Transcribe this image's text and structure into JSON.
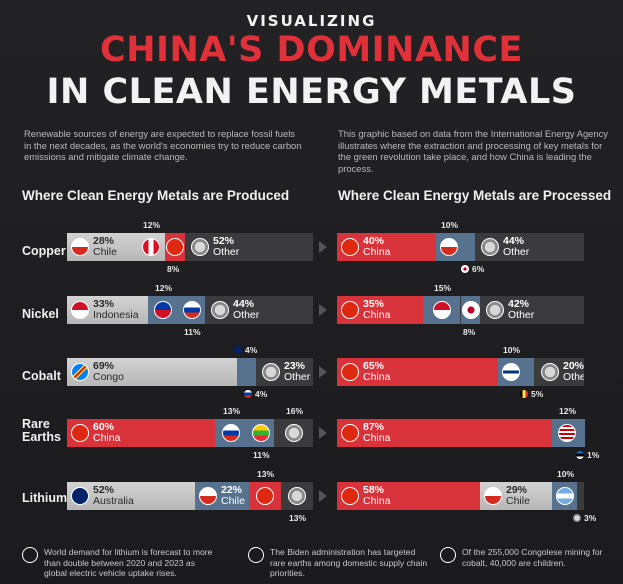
{
  "header": {
    "kicker": "VISUALIZING",
    "title_red": "CHINA'S DOMINANCE",
    "title_white": "IN CLEAN ENERGY METALS"
  },
  "intro_left": "Renewable sources of energy are expected to replace fossil fuels in the next decades, as the world's economies try to reduce carbon emissions and mitigate climate change.",
  "intro_right": "This graphic based on data from the International Energy Agency illustrates where the extraction and processing of key metals for the green revolution take place, and how China is leading the process.",
  "section_left": "Where Clean Energy Metals are Produced",
  "section_right": "Where Clean Energy Metals are Processed",
  "notes": [
    {
      "text": "World demand for lithium is forecast to more than double between 2020 and 2023 as global electric vehicle uptake rises.",
      "icon": "australia-flag-icon"
    },
    {
      "text": "The Biden administration has targeted rare earths among domestic supply chain priorities.",
      "icon": "us-flag-icon"
    },
    {
      "text": "Of the 255,000 Congolese mining for cobalt, 40,000 are children.",
      "icon": "congo-flag-icon"
    }
  ],
  "colors": {
    "china": "#d8323b",
    "label_gray": "#c4c4c4",
    "blue": "#56728f",
    "other": "#3b3b3d",
    "title_red": "#e0313a"
  },
  "chart_data": [
    {
      "type": "bar",
      "title": "Where Clean Energy Metals are Produced",
      "categories": [
        "Copper",
        "Nickel",
        "Cobalt",
        "Rare Earths",
        "Lithium"
      ],
      "rows": [
        {
          "metal": "Copper",
          "segments": [
            {
              "country": "Chile",
              "pct": "28%",
              "value": 28,
              "flag": "chile",
              "style": "gray",
              "inside": true
            },
            {
              "country": "Peru",
              "pct": "12%",
              "value": 12,
              "flag": "peru",
              "style": "gray",
              "inside": false,
              "callout": "above"
            },
            {
              "country": "China",
              "pct": "8%",
              "value": 8,
              "flag": "china",
              "style": "red",
              "inside": false,
              "callout": "below"
            },
            {
              "country": "Other",
              "pct": "52%",
              "value": 52,
              "flag": "globe",
              "style": "dark",
              "inside": true
            }
          ]
        },
        {
          "metal": "Nickel",
          "segments": [
            {
              "country": "Indonesia",
              "pct": "33%",
              "value": 33,
              "flag": "indonesia",
              "style": "gray",
              "inside": true
            },
            {
              "country": "Philippines",
              "pct": "12%",
              "value": 12,
              "flag": "philippines",
              "style": "blue",
              "inside": false,
              "callout": "above"
            },
            {
              "country": "Russia",
              "pct": "11%",
              "value": 11,
              "flag": "russia",
              "style": "blue",
              "inside": false,
              "callout": "below"
            },
            {
              "country": "Other",
              "pct": "44%",
              "value": 44,
              "flag": "globe",
              "style": "dark",
              "inside": true
            }
          ]
        },
        {
          "metal": "Cobalt",
          "segments": [
            {
              "country": "Congo",
              "pct": "69%",
              "value": 69,
              "flag": "congo",
              "style": "gray",
              "inside": true
            },
            {
              "country": "Australia",
              "pct": "4%",
              "value": 4,
              "flag": "australia",
              "style": "blue",
              "inside": false,
              "callout": "above"
            },
            {
              "country": "Russia",
              "pct": "4%",
              "value": 4,
              "flag": "russia",
              "style": "blue",
              "inside": false,
              "callout": "below"
            },
            {
              "country": "Other",
              "pct": "23%",
              "value": 23,
              "flag": "globe",
              "style": "dark",
              "inside": true
            }
          ]
        },
        {
          "metal": "Rare Earths",
          "segments": [
            {
              "country": "China",
              "pct": "60%",
              "value": 60,
              "flag": "china",
              "style": "red",
              "inside": true
            },
            {
              "country": "US",
              "pct": "13%",
              "value": 13,
              "flag": "russia",
              "style": "blue",
              "inside": false,
              "callout": "above"
            },
            {
              "country": "Myanmar",
              "pct": "11%",
              "value": 11,
              "flag": "myanmar",
              "style": "blue",
              "inside": false,
              "callout": "below"
            },
            {
              "country": "Other",
              "pct": "16%",
              "value": 16,
              "flag": "globe",
              "style": "dark",
              "inside": false,
              "callout": "above"
            }
          ]
        },
        {
          "metal": "Lithium",
          "segments": [
            {
              "country": "Australia",
              "pct": "52%",
              "value": 52,
              "flag": "australia",
              "style": "gray",
              "inside": true
            },
            {
              "country": "Chile",
              "pct": "22%",
              "value": 22,
              "flag": "chile",
              "style": "blue",
              "inside": true
            },
            {
              "country": "China",
              "pct": "13%",
              "value": 13,
              "flag": "china",
              "style": "red",
              "inside": false,
              "callout": "above"
            },
            {
              "country": "Other",
              "pct": "13%",
              "value": 13,
              "flag": "globe",
              "style": "dark",
              "inside": false,
              "callout": "below"
            }
          ]
        }
      ]
    },
    {
      "type": "bar",
      "title": "Where Clean Energy Metals are Processed",
      "categories": [
        "Copper",
        "Nickel",
        "Cobalt",
        "Rare Earths",
        "Lithium"
      ],
      "rows": [
        {
          "metal": "Copper",
          "segments": [
            {
              "country": "China",
              "pct": "40%",
              "value": 40,
              "flag": "china",
              "style": "red",
              "inside": true
            },
            {
              "country": "Chile",
              "pct": "10%",
              "value": 10,
              "flag": "chile",
              "style": "blue",
              "inside": false,
              "callout": "above"
            },
            {
              "country": "Japan",
              "pct": "6%",
              "value": 6,
              "flag": "japan",
              "style": "blue",
              "inside": false,
              "callout": "below"
            },
            {
              "country": "Other",
              "pct": "44%",
              "value": 44,
              "flag": "globe",
              "style": "dark",
              "inside": true
            }
          ]
        },
        {
          "metal": "Nickel",
          "segments": [
            {
              "country": "China",
              "pct": "35%",
              "value": 35,
              "flag": "china",
              "style": "red",
              "inside": true
            },
            {
              "country": "Indonesia",
              "pct": "15%",
              "value": 15,
              "flag": "indonesia",
              "style": "blue",
              "inside": false,
              "callout": "above"
            },
            {
              "country": "Japan",
              "pct": "8%",
              "value": 8,
              "flag": "japan",
              "style": "blue",
              "inside": false,
              "callout": "below"
            },
            {
              "country": "Other",
              "pct": "42%",
              "value": 42,
              "flag": "globe",
              "style": "dark",
              "inside": true
            }
          ]
        },
        {
          "metal": "Cobalt",
          "segments": [
            {
              "country": "China",
              "pct": "65%",
              "value": 65,
              "flag": "china",
              "style": "red",
              "inside": true
            },
            {
              "country": "Finland",
              "pct": "10%",
              "value": 10,
              "flag": "finland",
              "style": "blue",
              "inside": false,
              "callout": "above"
            },
            {
              "country": "Belgium",
              "pct": "5%",
              "value": 5,
              "flag": "belgium",
              "style": "blue",
              "inside": false,
              "callout": "below"
            },
            {
              "country": "Other",
              "pct": "20%",
              "value": 20,
              "flag": "globe",
              "style": "dark",
              "inside": true
            }
          ]
        },
        {
          "metal": "Rare Earths",
          "segments": [
            {
              "country": "China",
              "pct": "87%",
              "value": 87,
              "flag": "china",
              "style": "red",
              "inside": true
            },
            {
              "country": "Malaysia",
              "pct": "12%",
              "value": 12,
              "flag": "malaysia",
              "style": "blue",
              "inside": false,
              "callout": "above"
            },
            {
              "country": "Estonia",
              "pct": "1%",
              "value": 1,
              "flag": "estonia",
              "style": "blue",
              "inside": false,
              "callout": "below"
            }
          ]
        },
        {
          "metal": "Lithium",
          "segments": [
            {
              "country": "China",
              "pct": "58%",
              "value": 58,
              "flag": "china",
              "style": "red",
              "inside": true
            },
            {
              "country": "Chile",
              "pct": "29%",
              "value": 29,
              "flag": "chile",
              "style": "gray",
              "inside": true
            },
            {
              "country": "Argentina",
              "pct": "10%",
              "value": 10,
              "flag": "argentina",
              "style": "blue",
              "inside": false,
              "callout": "above"
            },
            {
              "country": "Other",
              "pct": "3%",
              "value": 3,
              "flag": "globe",
              "style": "dark",
              "inside": false,
              "callout": "below"
            }
          ]
        }
      ]
    }
  ]
}
